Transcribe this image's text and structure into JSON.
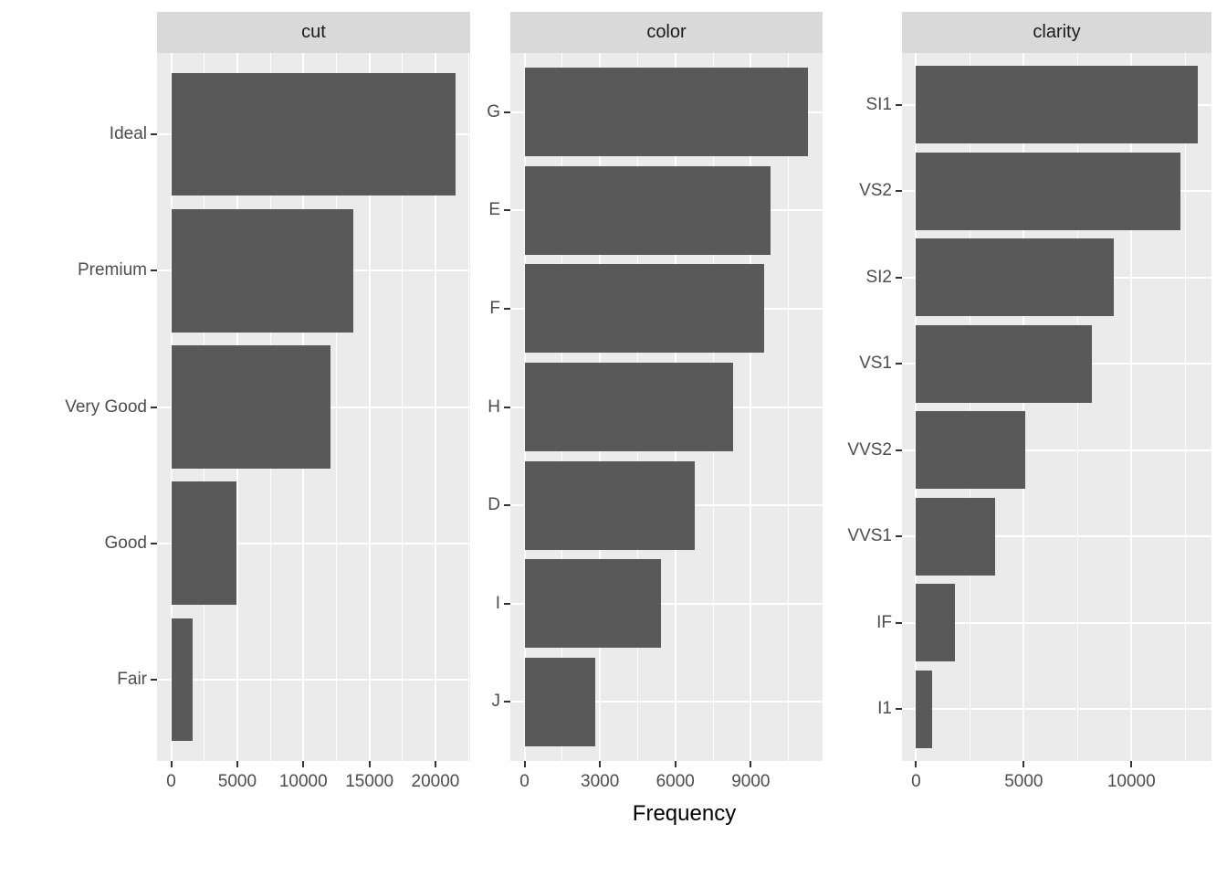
{
  "figure": {
    "kind": "faceted horizontal bar chart (ggplot2 style)",
    "axis_title": "Frequency"
  },
  "colors": {
    "bar_fill": "#595959",
    "panel_background": "#ebebeb",
    "strip_background": "#d9d9d9",
    "gridline": "#ffffff",
    "tick_mark": "#333333",
    "axis_text": "#4d4d4d",
    "strip_text": "#1a1a1a",
    "axis_title_text": "#000000",
    "page_background": "#ffffff"
  },
  "chart_data": [
    {
      "type": "bar",
      "orientation": "horizontal",
      "facet_label": "cut",
      "categories": [
        "Ideal",
        "Premium",
        "Very Good",
        "Good",
        "Fair"
      ],
      "values": [
        21551,
        13791,
        12082,
        4906,
        1610
      ],
      "x_ticks": [
        0,
        5000,
        10000,
        15000,
        20000
      ],
      "xlabel": "Frequency",
      "grid": "major white + minor white on grey panel",
      "legend": "none"
    },
    {
      "type": "bar",
      "orientation": "horizontal",
      "facet_label": "color",
      "categories": [
        "G",
        "E",
        "F",
        "H",
        "D",
        "I",
        "J"
      ],
      "values": [
        11292,
        9797,
        9542,
        8304,
        6775,
        5422,
        2808
      ],
      "x_ticks": [
        0,
        3000,
        6000,
        9000
      ],
      "xlabel": "Frequency",
      "grid": "major white + minor white on grey panel",
      "legend": "none"
    },
    {
      "type": "bar",
      "orientation": "horizontal",
      "facet_label": "clarity",
      "categories": [
        "SI1",
        "VS2",
        "SI2",
        "VS1",
        "VVS2",
        "VVS1",
        "IF",
        "I1"
      ],
      "values": [
        13065,
        12258,
        9194,
        8171,
        5066,
        3655,
        1790,
        741
      ],
      "x_ticks": [
        0,
        5000,
        10000
      ],
      "xlabel": "Frequency",
      "grid": "major white + minor white on grey panel",
      "legend": "none"
    }
  ]
}
